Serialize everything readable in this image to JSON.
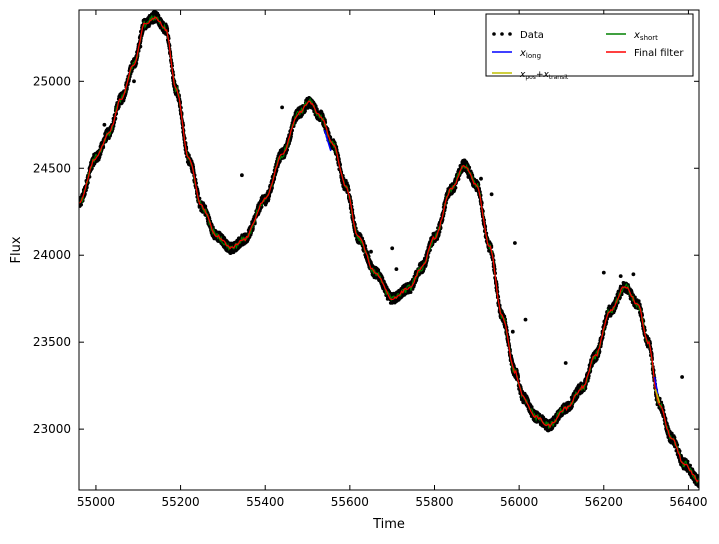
{
  "chart_data": {
    "type": "scatter",
    "xlabel": "Time",
    "ylabel": "Flux",
    "xlim": [
      54960,
      56425
    ],
    "ylim": [
      22650,
      25410
    ],
    "x_ticks": [
      55000,
      55200,
      55400,
      55600,
      55800,
      56000,
      56200,
      56400
    ],
    "y_ticks": [
      23000,
      23500,
      24000,
      24500,
      25000
    ],
    "grid": false,
    "legend_position": "top-right",
    "legend": [
      {
        "label": "Data",
        "symbol": "points",
        "color": "#000000"
      },
      {
        "label": "x_long",
        "symbol": "line",
        "color": "#0000ff"
      },
      {
        "label": "x_pos + x_transit",
        "symbol": "line",
        "color": "#bfbf00"
      },
      {
        "label": "x_short",
        "symbol": "line",
        "color": "#008000"
      },
      {
        "label": "Final filter",
        "symbol": "line",
        "color": "#ff0000"
      }
    ],
    "series": [
      {
        "name": "Data",
        "kind": "points",
        "color": "#000000",
        "curve": [
          [
            54960,
            24300
          ],
          [
            55000,
            24560
          ],
          [
            55030,
            24700
          ],
          [
            55060,
            24900
          ],
          [
            55090,
            25100
          ],
          [
            55115,
            25330
          ],
          [
            55140,
            25370
          ],
          [
            55165,
            25300
          ],
          [
            55190,
            24950
          ],
          [
            55220,
            24550
          ],
          [
            55250,
            24280
          ],
          [
            55285,
            24110
          ],
          [
            55320,
            24040
          ],
          [
            55350,
            24090
          ],
          [
            55400,
            24320
          ],
          [
            55440,
            24580
          ],
          [
            55480,
            24820
          ],
          [
            55505,
            24880
          ],
          [
            55530,
            24800
          ],
          [
            55560,
            24640
          ],
          [
            55590,
            24400
          ],
          [
            55620,
            24100
          ],
          [
            55660,
            23900
          ],
          [
            55700,
            23750
          ],
          [
            55740,
            23810
          ],
          [
            55770,
            23930
          ],
          [
            55800,
            24100
          ],
          [
            55840,
            24380
          ],
          [
            55870,
            24520
          ],
          [
            55900,
            24400
          ],
          [
            55930,
            24050
          ],
          [
            55960,
            23650
          ],
          [
            55990,
            23330
          ],
          [
            56010,
            23180
          ],
          [
            56040,
            23070
          ],
          [
            56070,
            23020
          ],
          [
            56110,
            23120
          ],
          [
            56150,
            23240
          ],
          [
            56180,
            23420
          ],
          [
            56215,
            23680
          ],
          [
            56250,
            23820
          ],
          [
            56280,
            23720
          ],
          [
            56305,
            23500
          ],
          [
            56330,
            23150
          ],
          [
            56360,
            22950
          ],
          [
            56390,
            22800
          ],
          [
            56425,
            22700
          ]
        ],
        "outliers": [
          [
            55060,
            24930
          ],
          [
            55020,
            24750
          ],
          [
            55090,
            25000
          ],
          [
            55105,
            25200
          ],
          [
            55440,
            24850
          ],
          [
            55345,
            24460
          ],
          [
            55275,
            24140
          ],
          [
            55700,
            24040
          ],
          [
            55650,
            24020
          ],
          [
            55710,
            23920
          ],
          [
            55750,
            23860
          ],
          [
            55880,
            24450
          ],
          [
            55860,
            24470
          ],
          [
            55910,
            24440
          ],
          [
            55935,
            24350
          ],
          [
            55990,
            24070
          ],
          [
            56015,
            23630
          ],
          [
            55985,
            23560
          ],
          [
            56110,
            23380
          ],
          [
            56200,
            23900
          ],
          [
            56240,
            23880
          ],
          [
            56270,
            23890
          ],
          [
            56385,
            23300
          ]
        ]
      },
      {
        "name": "x_short",
        "kind": "line",
        "color": "#008000",
        "curve": "same as Data curve"
      },
      {
        "name": "Final filter",
        "kind": "line",
        "color": "#ff0000",
        "curve": "same as Data curve"
      },
      {
        "name": "x_long",
        "kind": "line",
        "color": "#0000ff",
        "segments": [
          [
            [
              55540,
              24720
            ],
            [
              55555,
              24600
            ]
          ],
          [
            [
              56320,
              23300
            ],
            [
              56328,
              23200
            ]
          ]
        ]
      },
      {
        "name": "x_pos + x_transit",
        "kind": "line",
        "color": "#bfbf00",
        "segments": [
          [
            [
              56322,
              23230
            ],
            [
              56332,
              23150
            ]
          ]
        ]
      }
    ]
  }
}
